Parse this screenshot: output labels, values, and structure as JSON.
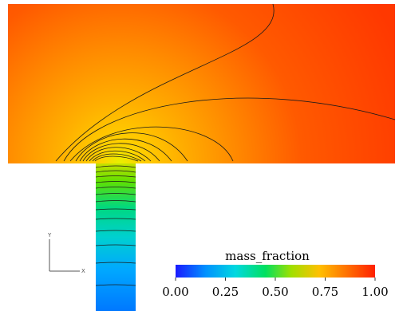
{
  "figure": {
    "colorbar": {
      "title": "mass_fraction",
      "ticks": [
        "0.00",
        "0.25",
        "0.50",
        "0.75",
        "1.00"
      ],
      "range": [
        0,
        1
      ],
      "colormap": [
        "#1a1aff",
        "#00a0ff",
        "#00e0c0",
        "#40e020",
        "#c8e000",
        "#ffb000",
        "#ff6000",
        "#ff2000"
      ]
    },
    "axes_triad": {
      "y_label": "Y",
      "x_label": "X"
    }
  }
}
